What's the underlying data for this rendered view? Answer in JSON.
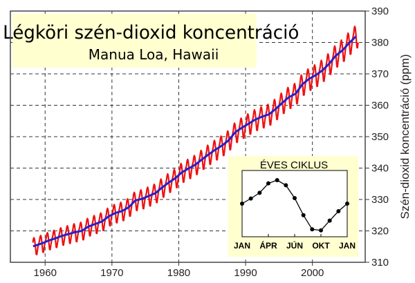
{
  "chart_data": {
    "type": "line",
    "title": "Légköri szén-dioxid koncentráció",
    "subtitle": "Manua Loa, Hawaii",
    "ylabel": "Szén-dioxid koncentráció (ppm)",
    "xlabel": "",
    "xlim": [
      1954.8,
      2007.9
    ],
    "ylim": [
      310,
      390
    ],
    "xticks": [
      1960,
      1970,
      1980,
      1990,
      2000
    ],
    "yticks": [
      310,
      320,
      330,
      340,
      350,
      360,
      370,
      380,
      390
    ],
    "grid": true,
    "colors": {
      "monthly": "#ee1111",
      "annual": "#2222cc",
      "title_box": "#ffffd0",
      "inset_box": "#ffffd0"
    },
    "annual_mean": {
      "years": [
        1958,
        1959,
        1960,
        1961,
        1962,
        1963,
        1964,
        1965,
        1966,
        1967,
        1968,
        1969,
        1970,
        1971,
        1972,
        1973,
        1974,
        1975,
        1976,
        1977,
        1978,
        1979,
        1980,
        1981,
        1982,
        1983,
        1984,
        1985,
        1986,
        1987,
        1988,
        1989,
        1990,
        1991,
        1992,
        1993,
        1994,
        1995,
        1996,
        1997,
        1998,
        1999,
        2000,
        2001,
        2002,
        2003,
        2004,
        2005,
        2006
      ],
      "ppm": [
        315.3,
        316.0,
        316.9,
        317.6,
        318.4,
        319.0,
        319.6,
        320.0,
        321.4,
        322.2,
        323.0,
        324.6,
        325.7,
        326.3,
        327.5,
        329.7,
        330.2,
        331.1,
        332.0,
        333.8,
        335.4,
        336.8,
        338.7,
        339.9,
        341.1,
        342.8,
        344.4,
        345.9,
        347.2,
        348.9,
        351.5,
        352.9,
        354.2,
        355.5,
        356.4,
        357.1,
        358.8,
        360.8,
        362.6,
        363.7,
        366.7,
        368.4,
        369.6,
        371.1,
        373.2,
        375.8,
        377.5,
        379.8,
        381.9
      ]
    },
    "inset": {
      "title": "ÉVES CIKLUS",
      "xticks": [
        "JAN",
        "ÁPR",
        "JÚN",
        "OKT",
        "JAN"
      ],
      "seasonal_offset_ppm": [
        0,
        0.67,
        1.42,
        2.67,
        3.09,
        2.42,
        0.73,
        -1.52,
        -3.39,
        -3.52,
        -2.24,
        -1.0,
        0
      ]
    }
  }
}
